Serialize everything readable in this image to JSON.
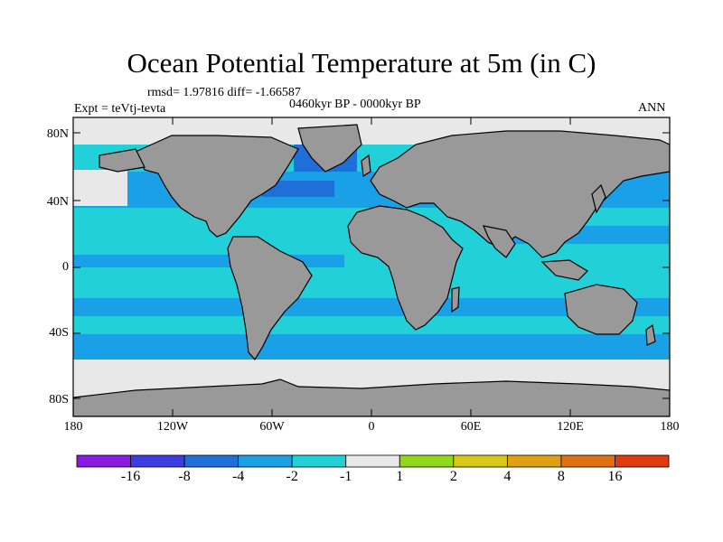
{
  "title": "Ocean Potential Temperature at 5m (in C)",
  "stats": "rmsd= 1.97816 diff= -1.66587",
  "period": "0460kyr BP - 0000kyr BP",
  "experiment": "Expt = teVtj-tevta",
  "season": "ANN",
  "lat_labels": [
    "80N",
    "40N",
    "0",
    "40S",
    "80S"
  ],
  "lon_labels": [
    "180",
    "120W",
    "60W",
    "0",
    "60E",
    "120E",
    "180"
  ],
  "colorbar": {
    "colors": [
      "#8a1ae0",
      "#3c3ce0",
      "#1e6fd9",
      "#1aa0e6",
      "#22d0d8",
      "#e8e8e8",
      "#8fd81a",
      "#d8c81a",
      "#e0a012",
      "#e07010",
      "#e03a10"
    ],
    "labels": [
      "-16",
      "-8",
      "-4",
      "-2",
      "-1",
      "1",
      "2",
      "4",
      "8",
      "16"
    ]
  },
  "colors": {
    "land": "#999999",
    "ocean_base": "#22d0d8",
    "cold_band": "#1aa0e6",
    "polar": "#e8e8e8",
    "deep_cold": "#1e6fd9"
  }
}
